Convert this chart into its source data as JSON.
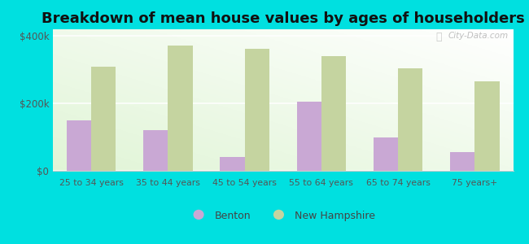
{
  "title": "Breakdown of mean house values by ages of householders",
  "categories": [
    "25 to 34 years",
    "35 to 44 years",
    "45 to 54 years",
    "55 to 64 years",
    "65 to 74 years",
    "75 years+"
  ],
  "benton_values": [
    150000,
    120000,
    40000,
    205000,
    100000,
    55000
  ],
  "nh_values": [
    310000,
    372000,
    362000,
    340000,
    305000,
    265000
  ],
  "benton_color": "#c9a8d4",
  "nh_color": "#c5d4a0",
  "background_color": "#00e0e0",
  "title_fontsize": 13,
  "ylim": [
    0,
    420000
  ],
  "yticks": [
    0,
    200000,
    400000
  ],
  "ytick_labels": [
    "$0",
    "$200k",
    "$400k"
  ],
  "legend_benton": "Benton",
  "legend_nh": "New Hampshire",
  "bar_width": 0.32,
  "watermark": "City-Data.com"
}
